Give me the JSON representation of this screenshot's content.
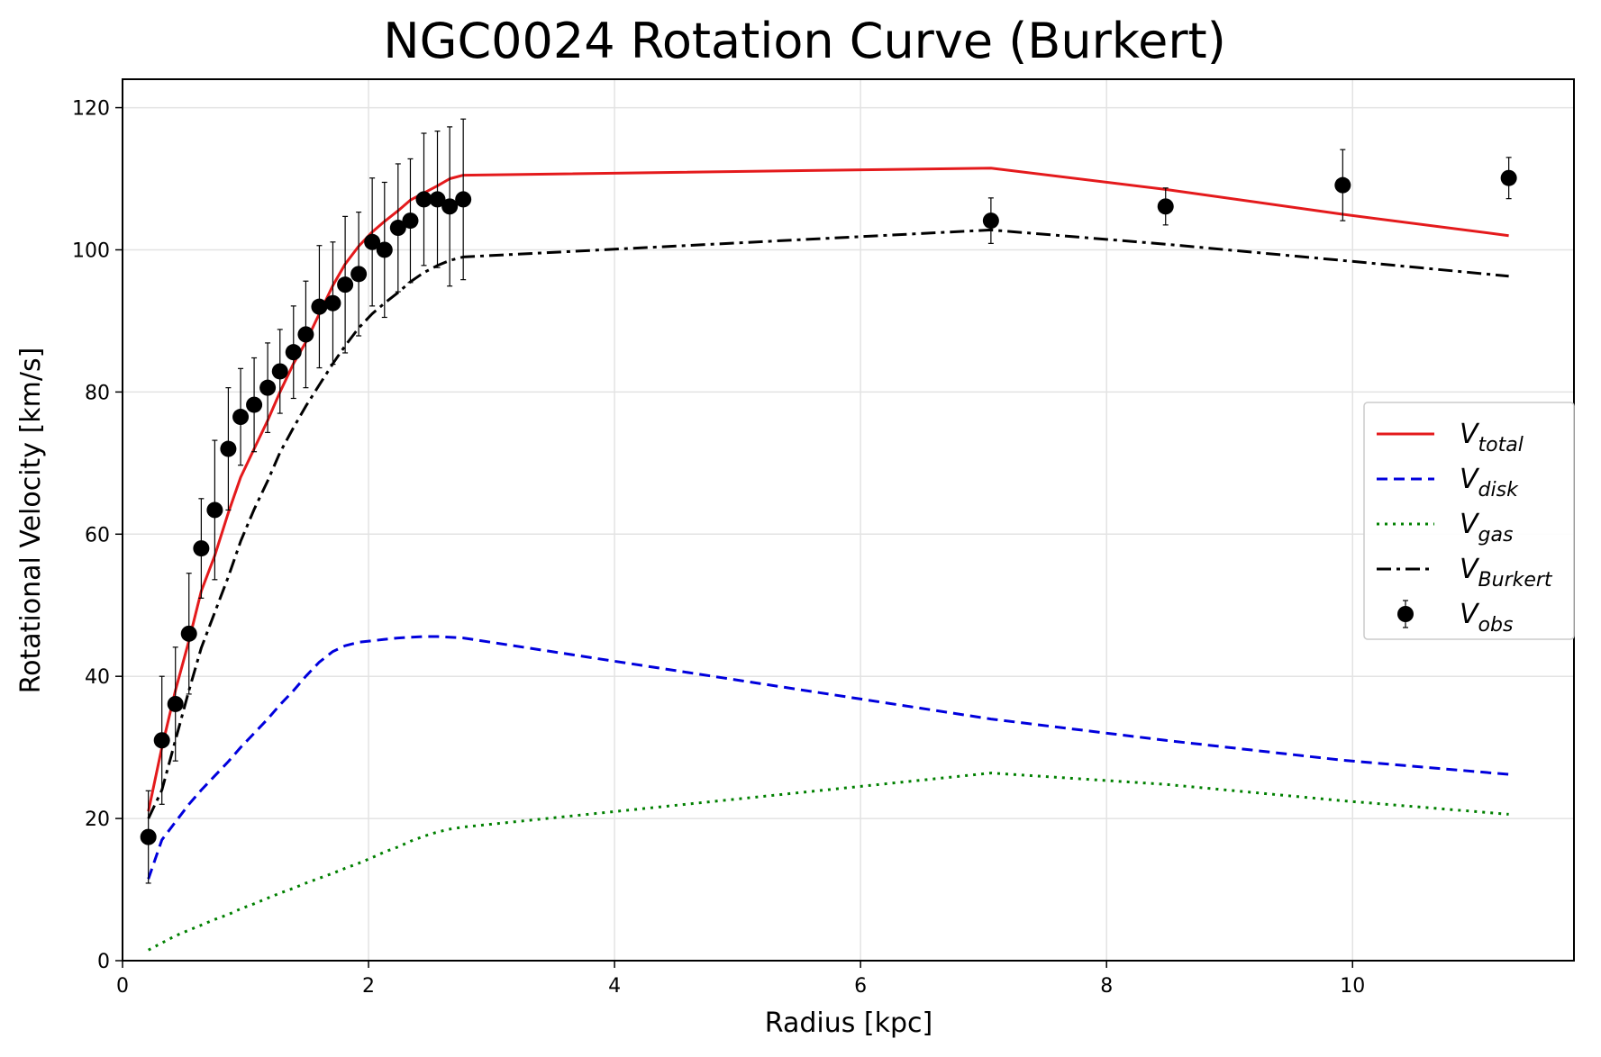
{
  "chart_data": {
    "type": "line",
    "title": "NGC0024 Rotation Curve (Burkert)",
    "xlabel": "Radius [kpc]",
    "ylabel": "Rotational Velocity [km/s]",
    "xlim": [
      0,
      11.8
    ],
    "ylim": [
      0,
      124
    ],
    "xticks": [
      0,
      2,
      4,
      6,
      8,
      10
    ],
    "yticks": [
      0,
      20,
      40,
      60,
      80,
      100,
      120
    ],
    "grid": true,
    "legend_position": "center-right",
    "x": [
      0.21,
      0.32,
      0.43,
      0.54,
      0.64,
      0.75,
      0.86,
      0.96,
      1.07,
      1.18,
      1.28,
      1.39,
      1.49,
      1.6,
      1.71,
      1.81,
      1.92,
      2.03,
      2.13,
      2.24,
      2.34,
      2.45,
      2.56,
      2.66,
      2.77,
      7.06,
      8.48,
      9.92,
      11.27
    ],
    "series": [
      {
        "name": "V",
        "sub": "total",
        "color": "#e41a1c",
        "dash": "solid",
        "values": [
          21,
          30,
          38,
          45,
          52,
          57,
          63,
          68,
          72,
          76,
          80,
          84,
          87,
          91,
          95,
          98,
          100.5,
          102.5,
          104,
          105.5,
          107,
          108,
          109,
          110,
          110.5,
          111.5,
          108.5,
          105,
          102
        ]
      },
      {
        "name": "V",
        "sub": "disk",
        "color": "#0000dd",
        "dash": "dashed",
        "values": [
          11.5,
          17,
          19.5,
          22,
          24,
          26,
          28,
          30,
          32,
          34,
          36,
          38,
          40,
          42,
          43.5,
          44.3,
          44.8,
          45,
          45.2,
          45.4,
          45.5,
          45.6,
          45.6,
          45.5,
          45.4,
          34,
          31,
          28.2,
          26.2
        ]
      },
      {
        "name": "V",
        "sub": "gas",
        "color": "#008000",
        "dash": "dotted",
        "values": [
          1.5,
          2.5,
          3.5,
          4.3,
          5,
          5.8,
          6.5,
          7.3,
          8,
          8.8,
          9.5,
          10.2,
          10.9,
          11.6,
          12.3,
          13,
          13.7,
          14.5,
          15.3,
          16,
          16.8,
          17.5,
          18.1,
          18.5,
          18.8,
          26.4,
          24.8,
          22.5,
          20.6
        ]
      },
      {
        "name": "V",
        "sub": "Burkert",
        "color": "#000000",
        "dash": "dashdot",
        "values": [
          20,
          24,
          31,
          38,
          44,
          49,
          54,
          59,
          63.5,
          67.5,
          71.5,
          75,
          78,
          81,
          84,
          86.5,
          89,
          91,
          92.5,
          94,
          95.5,
          96.8,
          97.8,
          98.5,
          99,
          102.8,
          100.8,
          98.5,
          96.3
        ]
      }
    ],
    "observed": {
      "name": "V",
      "sub": "obs",
      "color": "#000000",
      "values": [
        17.4,
        31,
        36.1,
        46,
        58,
        63.4,
        72,
        76.5,
        78.2,
        80.6,
        82.9,
        85.6,
        88.1,
        92,
        92.5,
        95.1,
        96.6,
        101.1,
        100,
        103.1,
        104.1,
        107.1,
        107.1,
        106.1,
        107.1,
        104.1,
        106.1,
        109.1,
        110.1
      ],
      "errors": [
        6.5,
        9,
        8,
        8.5,
        7,
        9.8,
        8.6,
        6.8,
        6.6,
        6.3,
        5.9,
        6.5,
        7.5,
        8.6,
        8.6,
        9.6,
        8.7,
        9,
        9.5,
        9,
        8.7,
        9.3,
        9.6,
        11.2,
        11.3,
        3.2,
        2.6,
        5,
        2.9
      ]
    }
  }
}
